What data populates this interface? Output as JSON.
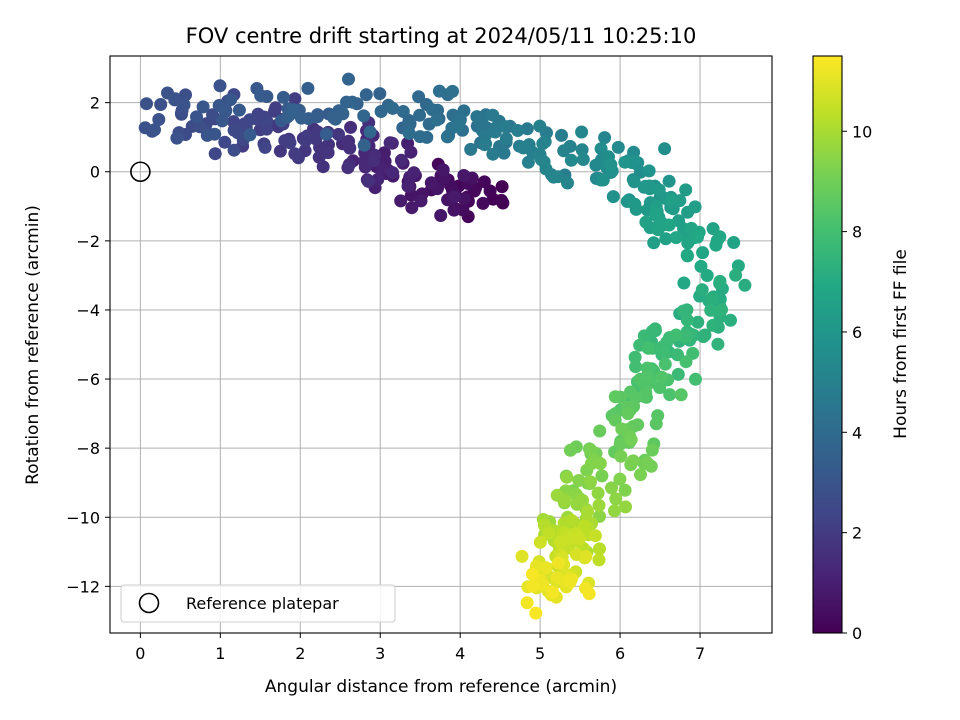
{
  "chart_data": {
    "type": "scatter",
    "title": "FOV centre drift starting at 2024/05/11 10:25:10",
    "xlabel": "Angular distance from reference (arcmin)",
    "ylabel": "Rotation from reference (arcmin)",
    "xlim": [
      -0.38,
      7.9
    ],
    "ylim": [
      -13.35,
      3.35
    ],
    "xticks": [
      0,
      1,
      2,
      3,
      4,
      5,
      6,
      7
    ],
    "yticks": [
      -12,
      -10,
      -8,
      -6,
      -4,
      -2,
      0,
      2
    ],
    "grid": true,
    "colorbar": {
      "label": "Hours from first FF file",
      "colormap": "viridis",
      "range": [
        0,
        11.5
      ],
      "ticks": [
        0,
        2,
        4,
        6,
        8,
        10
      ]
    },
    "legend": {
      "placement": "lower-left",
      "entries": [
        {
          "label": "Reference platepar",
          "marker": "open-circle",
          "color": "#000000"
        }
      ]
    },
    "reference_point": {
      "x": 0,
      "y": 0
    },
    "path_anchors": [
      {
        "hours": 0.0,
        "x": 4.3,
        "y": -0.7
      },
      {
        "hours": 0.6,
        "x": 3.7,
        "y": -0.6
      },
      {
        "hours": 1.2,
        "x": 3.0,
        "y": 0.3
      },
      {
        "hours": 1.8,
        "x": 2.2,
        "y": 1.0
      },
      {
        "hours": 2.4,
        "x": 1.2,
        "y": 1.4
      },
      {
        "hours": 2.9,
        "x": 0.4,
        "y": 1.5
      },
      {
        "hours": 3.3,
        "x": 1.8,
        "y": 1.7
      },
      {
        "hours": 3.8,
        "x": 3.2,
        "y": 1.7
      },
      {
        "hours": 4.4,
        "x": 4.2,
        "y": 1.4
      },
      {
        "hours": 5.0,
        "x": 5.0,
        "y": 0.5
      },
      {
        "hours": 5.6,
        "x": 6.0,
        "y": 0.1
      },
      {
        "hours": 6.3,
        "x": 6.5,
        "y": -1.2
      },
      {
        "hours": 6.8,
        "x": 7.0,
        "y": -2.1
      },
      {
        "hours": 7.2,
        "x": 7.3,
        "y": -3.9
      },
      {
        "hours": 7.6,
        "x": 6.6,
        "y": -4.8
      },
      {
        "hours": 8.1,
        "x": 6.4,
        "y": -5.8
      },
      {
        "hours": 8.6,
        "x": 6.2,
        "y": -7.1
      },
      {
        "hours": 9.2,
        "x": 5.8,
        "y": -8.6
      },
      {
        "hours": 9.8,
        "x": 5.5,
        "y": -10.0
      },
      {
        "hours": 10.4,
        "x": 5.4,
        "y": -10.8
      },
      {
        "hours": 11.0,
        "x": 5.2,
        "y": -11.8
      },
      {
        "hours": 11.4,
        "x": 5.2,
        "y": -12.3
      }
    ],
    "point_count": 620,
    "scatter_spread": {
      "x": 0.22,
      "y": 0.38
    }
  }
}
